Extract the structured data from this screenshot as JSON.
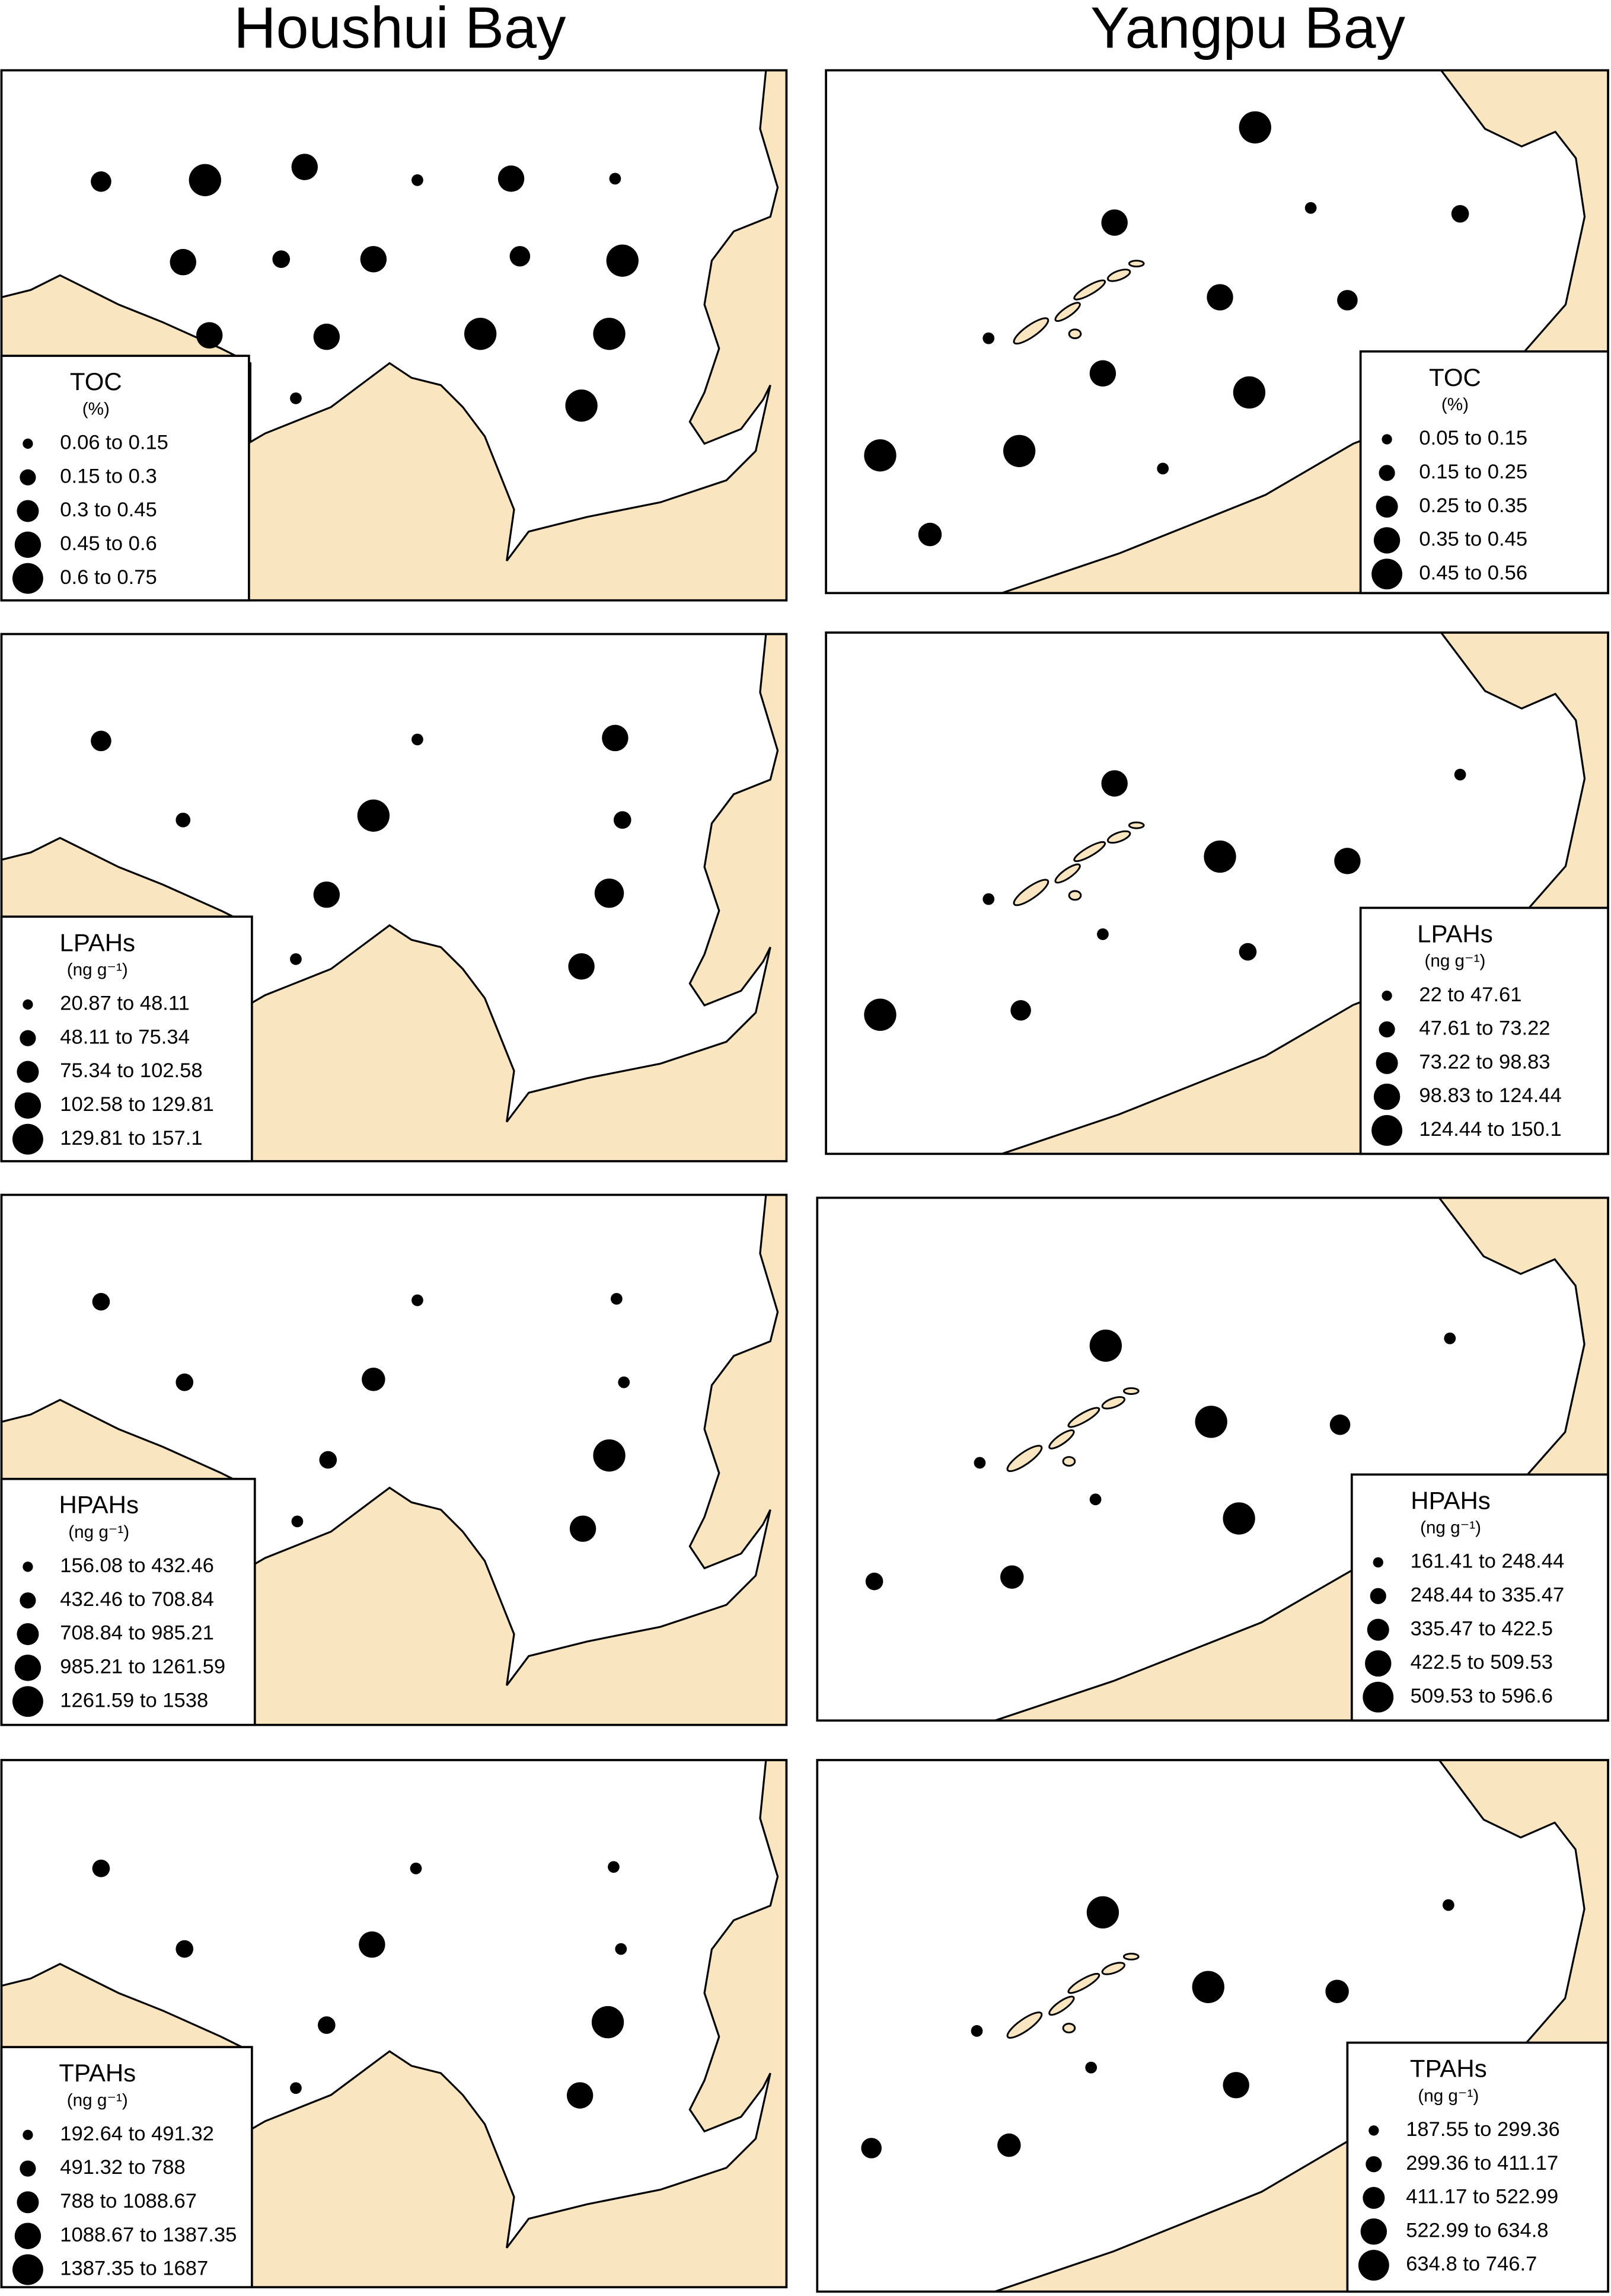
{
  "columns": [
    {
      "title": "Houshui Bay",
      "panels": [
        {
          "legend": {
            "title": "TOC",
            "unit": "(%)",
            "classes": [
              "0.06 to 0.15",
              "0.15 to 0.3",
              "0.3 to 0.45",
              "0.45 to 0.6",
              "0.6 to 0.75"
            ]
          }
        },
        {
          "legend": {
            "title": "LPAHs",
            "unit": "(ng g⁻¹)",
            "classes": [
              "20.87 to 48.11",
              "48.11 to 75.34",
              "75.34 to 102.58",
              "102.58 to 129.81",
              "129.81 to 157.1"
            ]
          }
        },
        {
          "legend": {
            "title": "HPAHs",
            "unit": "(ng g⁻¹)",
            "classes": [
              "156.08 to 432.46",
              "432.46 to 708.84",
              "708.84 to 985.21",
              "985.21 to 1261.59",
              "1261.59 to 1538"
            ]
          }
        },
        {
          "legend": {
            "title": "TPAHs",
            "unit": "(ng g⁻¹)",
            "classes": [
              "192.64 to 491.32",
              "491.32 to 788",
              "788 to 1088.67",
              "1088.67 to 1387.35",
              "1387.35 to 1687"
            ]
          }
        }
      ]
    },
    {
      "title": "Yangpu Bay",
      "panels": [
        {
          "legend": {
            "title": "TOC",
            "unit": "(%)",
            "classes": [
              "0.05 to 0.15",
              "0.15 to 0.25",
              "0.25 to 0.35",
              "0.35 to 0.45",
              "0.45 to 0.56"
            ]
          }
        },
        {
          "legend": {
            "title": "LPAHs",
            "unit": "(ng g⁻¹)",
            "classes": [
              "22 to 47.61",
              "47.61 to 73.22",
              "73.22 to 98.83",
              "98.83 to 124.44",
              "124.44 to 150.1"
            ]
          }
        },
        {
          "legend": {
            "title": "HPAHs",
            "unit": "(ng g⁻¹)",
            "classes": [
              "161.41 to 248.44",
              "248.44 to 335.47",
              "335.47 to 422.5",
              "422.5 to 509.53",
              "509.53 to 596.6"
            ]
          }
        },
        {
          "legend": {
            "title": "TPAHs",
            "unit": "(ng g⁻¹)",
            "classes": [
              "187.55 to 299.36",
              "299.36 to 411.17",
              "411.17 to 522.99",
              "522.99 to 634.8",
              "634.8 to 746.7"
            ]
          }
        }
      ]
    }
  ]
}
